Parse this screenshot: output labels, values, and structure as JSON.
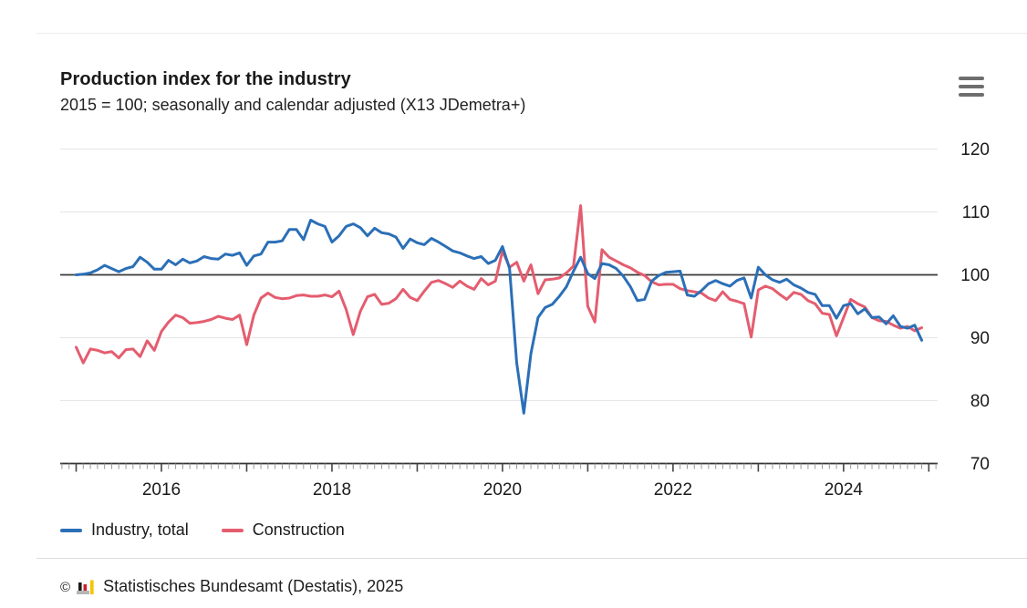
{
  "header": {
    "title": "Production index for the industry",
    "subtitle": "2015 = 100; seasonally and calendar adjusted (X13 JDemetra+)"
  },
  "menu": {
    "icon": "hamburger-menu-icon"
  },
  "chart_data": {
    "type": "line",
    "title": "Production index for the industry",
    "subtitle": "2015 = 100; seasonally and calendar adjusted (X13 JDemetra+)",
    "frequency": "monthly",
    "x_start": "2015-01",
    "x_end": "2024-12",
    "grid": true,
    "legend_position": "bottom",
    "reference_line": 100,
    "ylim": [
      67,
      123
    ],
    "y_ticks": [
      70,
      80,
      90,
      100,
      110,
      120
    ],
    "x_year_ticks": [
      {
        "label": "2016",
        "month_index": 12
      },
      {
        "label": "2018",
        "month_index": 36
      },
      {
        "label": "2020",
        "month_index": 60
      },
      {
        "label": "2022",
        "month_index": 84
      },
      {
        "label": "2024",
        "month_index": 108
      }
    ],
    "series": [
      {
        "name": "Industry, total",
        "color": "#2b6fb7",
        "values": [
          100.0,
          100.1,
          100.3,
          100.8,
          101.5,
          101.0,
          100.5,
          101.0,
          101.3,
          102.8,
          102.0,
          100.9,
          100.9,
          102.3,
          101.6,
          102.5,
          101.9,
          102.2,
          102.9,
          102.6,
          102.5,
          103.3,
          103.1,
          103.5,
          101.5,
          103.0,
          103.3,
          105.2,
          105.2,
          105.4,
          107.2,
          107.2,
          105.6,
          108.7,
          108.1,
          107.7,
          105.2,
          106.2,
          107.7,
          108.1,
          107.5,
          106.2,
          107.4,
          106.7,
          106.5,
          106.0,
          104.2,
          105.7,
          105.1,
          104.8,
          105.8,
          105.2,
          104.5,
          103.8,
          103.5,
          103.0,
          102.6,
          102.9,
          101.8,
          102.3,
          104.5,
          101.0,
          86.0,
          78.0,
          87.5,
          93.2,
          94.8,
          95.3,
          96.6,
          98.1,
          100.6,
          102.8,
          100.2,
          99.4,
          101.8,
          101.6,
          101.0,
          99.8,
          98.1,
          95.9,
          96.1,
          99.0,
          99.9,
          100.4,
          100.5,
          100.6,
          96.8,
          96.6,
          97.5,
          98.6,
          99.1,
          98.6,
          98.2,
          99.1,
          99.5,
          96.3,
          101.2,
          100.0,
          99.2,
          98.8,
          99.3,
          98.4,
          97.9,
          97.2,
          96.9,
          95.1,
          95.1,
          93.1,
          95.1,
          95.4,
          93.8,
          94.6,
          93.2,
          93.3,
          92.2,
          93.5,
          91.8,
          91.5,
          92.0,
          89.6
        ]
      },
      {
        "name": "Construction",
        "color": "#e45d6f",
        "values": [
          88.5,
          86.0,
          88.2,
          88.0,
          87.6,
          87.8,
          86.8,
          88.1,
          88.2,
          87.0,
          89.5,
          88.0,
          91.0,
          92.5,
          93.6,
          93.2,
          92.3,
          92.4,
          92.6,
          92.9,
          93.4,
          93.1,
          92.9,
          93.6,
          88.9,
          93.6,
          96.3,
          97.1,
          96.4,
          96.2,
          96.3,
          96.7,
          96.8,
          96.6,
          96.6,
          96.8,
          96.5,
          97.4,
          94.5,
          90.5,
          94.2,
          96.5,
          96.9,
          95.3,
          95.5,
          96.2,
          97.7,
          96.4,
          95.9,
          97.4,
          98.8,
          99.1,
          98.6,
          98.0,
          99.0,
          98.2,
          97.7,
          99.4,
          98.4,
          99.0,
          103.8,
          101.2,
          102.0,
          99.0,
          101.6,
          97.0,
          99.2,
          99.3,
          99.5,
          100.3,
          101.4,
          111.0,
          95.0,
          92.5,
          104.0,
          102.8,
          102.2,
          101.6,
          101.1,
          100.4,
          99.9,
          98.9,
          98.4,
          98.5,
          98.5,
          97.8,
          97.5,
          97.3,
          97.1,
          96.3,
          95.9,
          97.3,
          96.1,
          95.8,
          95.4,
          90.1,
          97.6,
          98.2,
          97.8,
          96.9,
          96.1,
          97.2,
          96.9,
          95.9,
          95.4,
          93.9,
          93.7,
          90.3,
          93.2,
          96.1,
          95.4,
          94.9,
          93.2,
          92.7,
          92.6,
          92.0,
          91.5,
          91.8,
          91.1,
          91.6
        ]
      }
    ]
  },
  "footer": {
    "copyright_symbol": "©",
    "source": "Statistisches Bundesamt (Destatis), 2025",
    "logo": "destatis-bar-chart-logo",
    "logo_colors": {
      "base": "#b5b5b5",
      "bar1": "#1a1a1a",
      "bar2": "#cc2129",
      "bar3": "#f5c400"
    }
  },
  "colors": {
    "grid_line": "#e6e6e6",
    "reference_line": "#3a3a3a",
    "axis_line": "#333333",
    "minor_tick": "#999999",
    "major_tick": "#444444",
    "text": "#1a1a1a"
  }
}
